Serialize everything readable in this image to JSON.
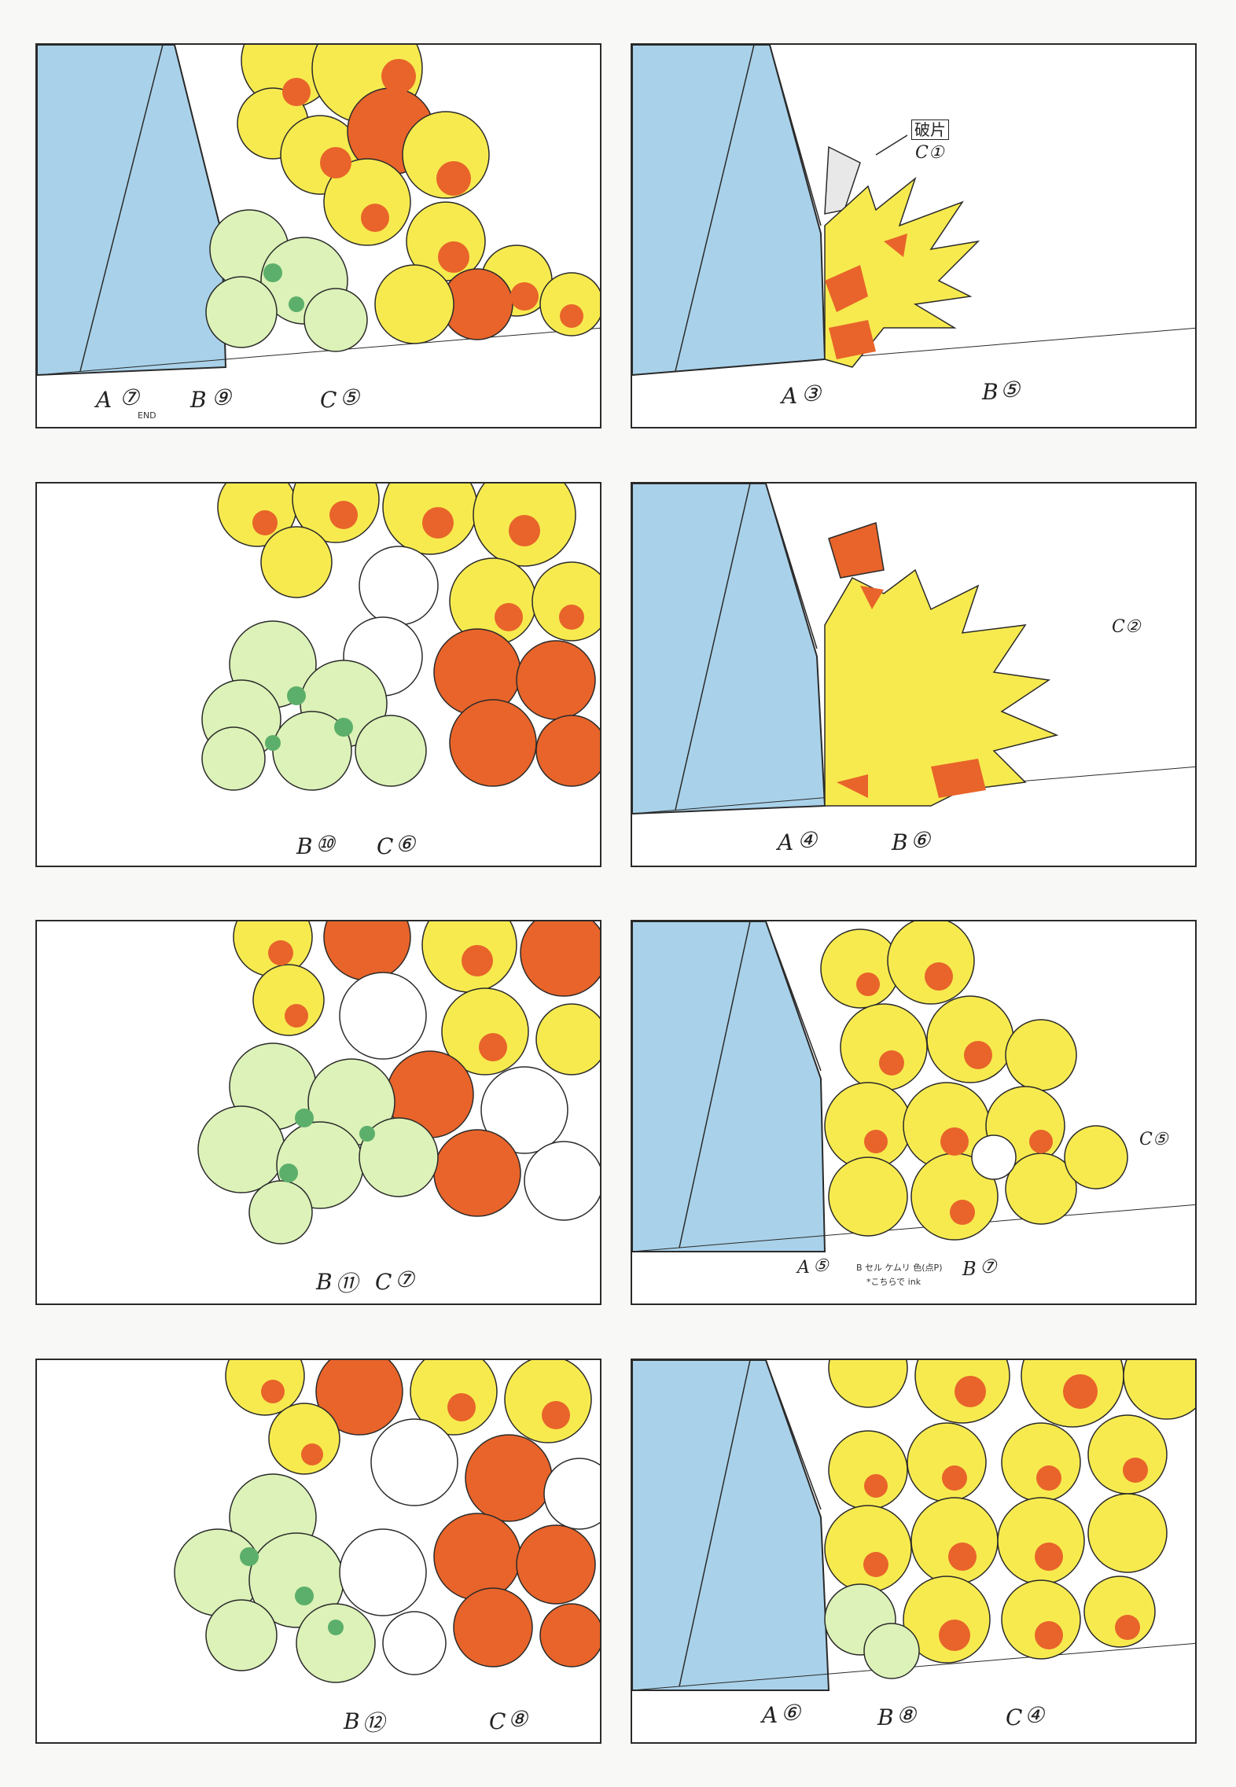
{
  "colors": {
    "wall": "#a9d2ea",
    "yellow": "#f7ea4f",
    "orange": "#e8642a",
    "pale_green": "#dcf2b8",
    "green_shade": "#5caf6a",
    "outline": "#2a2a2a"
  },
  "panels": [
    {
      "id": "p1",
      "labels": [
        "A",
        "⑦",
        "END",
        "B",
        "⑨",
        "C",
        "⑤"
      ]
    },
    {
      "id": "p2",
      "labels": [
        "A",
        "③",
        "B",
        "⑤"
      ],
      "box_note": "破片",
      "box_cel": "C①"
    },
    {
      "id": "p3",
      "labels": [
        "B",
        "⑩",
        "C",
        "⑥"
      ]
    },
    {
      "id": "p4",
      "labels": [
        "A",
        "④",
        "B",
        "⑥"
      ],
      "side_cel": "C②"
    },
    {
      "id": "p5",
      "labels": [
        "B",
        "⑪",
        "C",
        "⑦"
      ]
    },
    {
      "id": "p6",
      "labels": [
        "A",
        "⑤",
        "B",
        "⑦"
      ],
      "side_cel": "C⑤",
      "note_line1": "B セル ケムリ 色(点P)",
      "note_line2": "*こちらで ink"
    },
    {
      "id": "p7",
      "labels": [
        "B",
        "⑫",
        "C",
        "⑧"
      ]
    },
    {
      "id": "p8",
      "labels": [
        "A",
        "⑥",
        "B",
        "⑧",
        "C",
        "④"
      ]
    }
  ]
}
